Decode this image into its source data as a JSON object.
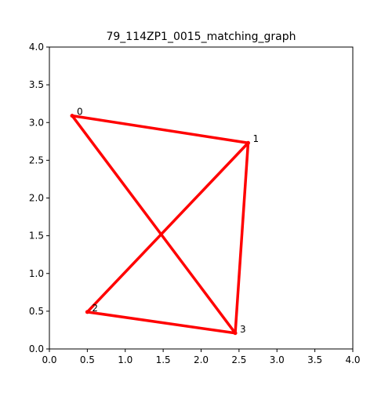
{
  "chart_data": {
    "type": "scatter",
    "title": "79_114ZP1_0015_matching_graph",
    "xlabel": "",
    "ylabel": "",
    "xlim": [
      0.0,
      4.0
    ],
    "ylim": [
      0.0,
      4.0
    ],
    "grid": false,
    "x_ticks": [
      "0.0",
      "0.5",
      "1.0",
      "1.5",
      "2.0",
      "2.5",
      "3.0",
      "3.5",
      "4.0"
    ],
    "y_ticks": [
      "0.0",
      "0.5",
      "1.0",
      "1.5",
      "2.0",
      "2.5",
      "3.0",
      "3.5",
      "4.0"
    ],
    "nodes": [
      {
        "label": "0",
        "x": 0.3,
        "y": 3.09
      },
      {
        "label": "1",
        "x": 2.62,
        "y": 2.73
      },
      {
        "label": "2",
        "x": 0.5,
        "y": 0.49
      },
      {
        "label": "3",
        "x": 2.45,
        "y": 0.21
      }
    ],
    "edges": [
      {
        "from": "0",
        "to": "1"
      },
      {
        "from": "1",
        "to": "2"
      },
      {
        "from": "0",
        "to": "3"
      },
      {
        "from": "1",
        "to": "3"
      },
      {
        "from": "2",
        "to": "3"
      }
    ],
    "edge_color": "#ff0000"
  }
}
